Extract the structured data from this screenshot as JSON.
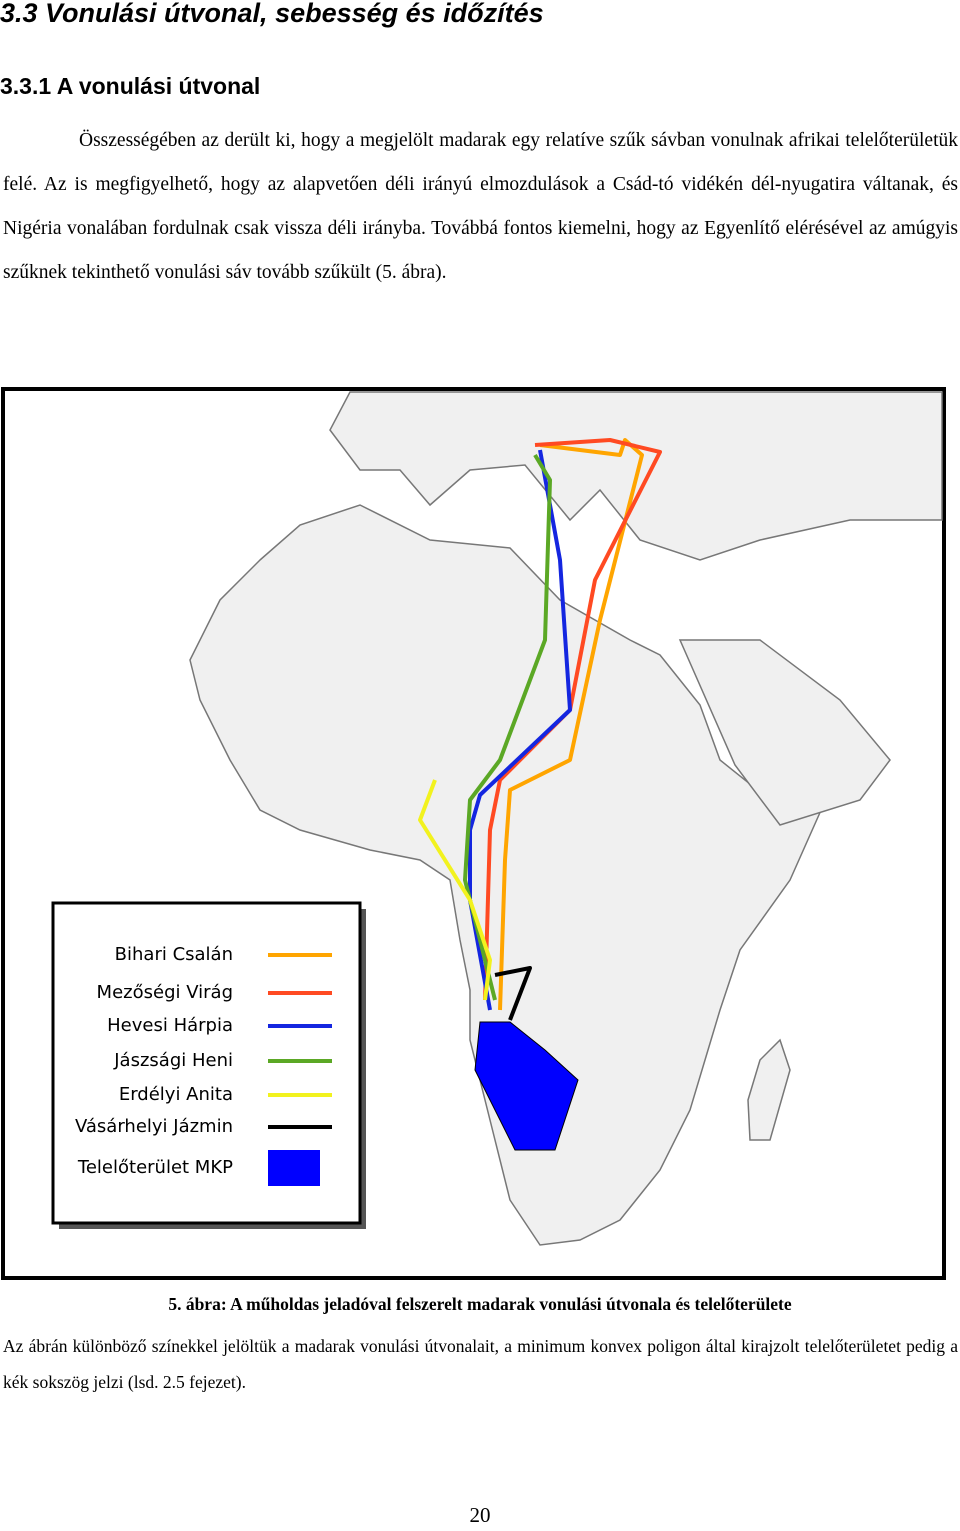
{
  "header": {
    "section_title": "3.3  Vonulási útvonal, sebesség és időzítés",
    "subsection_title": "3.3.1  A vonulási útvonal"
  },
  "body": {
    "paragraph": "Összességében az derült ki, hogy a megjelölt madarak egy relatíve szűk sávban vonulnak afrikai telelőterületük felé. Az is megfigyelhető, hogy az alapvetően déli irányú elmozdulások a Csád-tó vidékén dél-nyugatira váltanak, és Nigéria vonalában fordulnak csak vissza déli irányba. Továbbá fontos kiemelni, hogy az Egyenlítő elérésével az amúgyis szűknek tekinthető vonulási sáv tovább szűkült (5. ábra)."
  },
  "figure": {
    "legend": {
      "items": [
        {
          "label": "Bihari Csalán",
          "color": "#ffa500"
        },
        {
          "label": "Mezőségi Virág",
          "color": "#ff4a22"
        },
        {
          "label": "Hevesi Hárpia",
          "color": "#1426e0"
        },
        {
          "label": "Jászsági Heni",
          "color": "#5ba825"
        },
        {
          "label": "Erdélyi Anita",
          "color": "#f2f21e"
        },
        {
          "label": "Vásárhelyi Jázmin",
          "color": "#000000"
        },
        {
          "label": "Telelőterület MKP",
          "color": "#0000ff"
        }
      ]
    },
    "caption": "5. ábra: A műholdas jeladóval felszerelt madarak vonulási útvonala és telelőterülete",
    "description": "Az ábrán különböző színekkel jelöltük a madarak vonulási útvonalait, a minimum konvex poligon által kirajzolt telelőterületet pedig a kék sokszög jelzi (lsd. 2.5 fejezet)."
  },
  "footer": {
    "page_number": "20"
  }
}
